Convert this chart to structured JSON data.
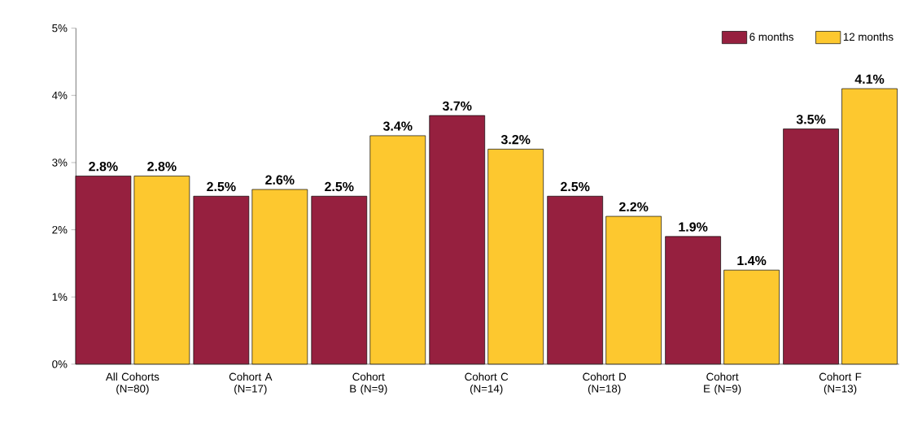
{
  "chart_data": {
    "type": "bar",
    "categories": [
      "All Cohorts (N=80)",
      "Cohort A (N=17)",
      "Cohort B (N=9)",
      "Cohort C (N=14)",
      "Cohort D (N=18)",
      "Cohort E (N=9)",
      "Cohort F (N=13)"
    ],
    "series": [
      {
        "name": "6 months",
        "color": "#96203f",
        "values": [
          2.8,
          2.5,
          2.5,
          3.7,
          2.5,
          1.9,
          3.5
        ],
        "value_labels": [
          "2.8%",
          "2.5%",
          "2.5%",
          "3.7%",
          "2.5%",
          "1.9%",
          "3.5%"
        ]
      },
      {
        "name": "12 months",
        "color": "#fdc82f",
        "values": [
          2.8,
          2.6,
          3.4,
          3.2,
          2.2,
          1.4,
          4.1
        ],
        "value_labels": [
          "2.8%",
          "2.6%",
          "3.4%",
          "3.2%",
          "2.2%",
          "1.4%",
          "4.1%"
        ]
      }
    ],
    "ylim": [
      0,
      5
    ],
    "yticks": [
      {
        "value": 0,
        "label": "0%"
      },
      {
        "value": 1,
        "label": "1%"
      },
      {
        "value": 2,
        "label": "2%"
      },
      {
        "value": 3,
        "label": "3%"
      },
      {
        "value": 4,
        "label": "4%"
      },
      {
        "value": 5,
        "label": "5%"
      }
    ],
    "grid": false,
    "legend": "top right"
  }
}
